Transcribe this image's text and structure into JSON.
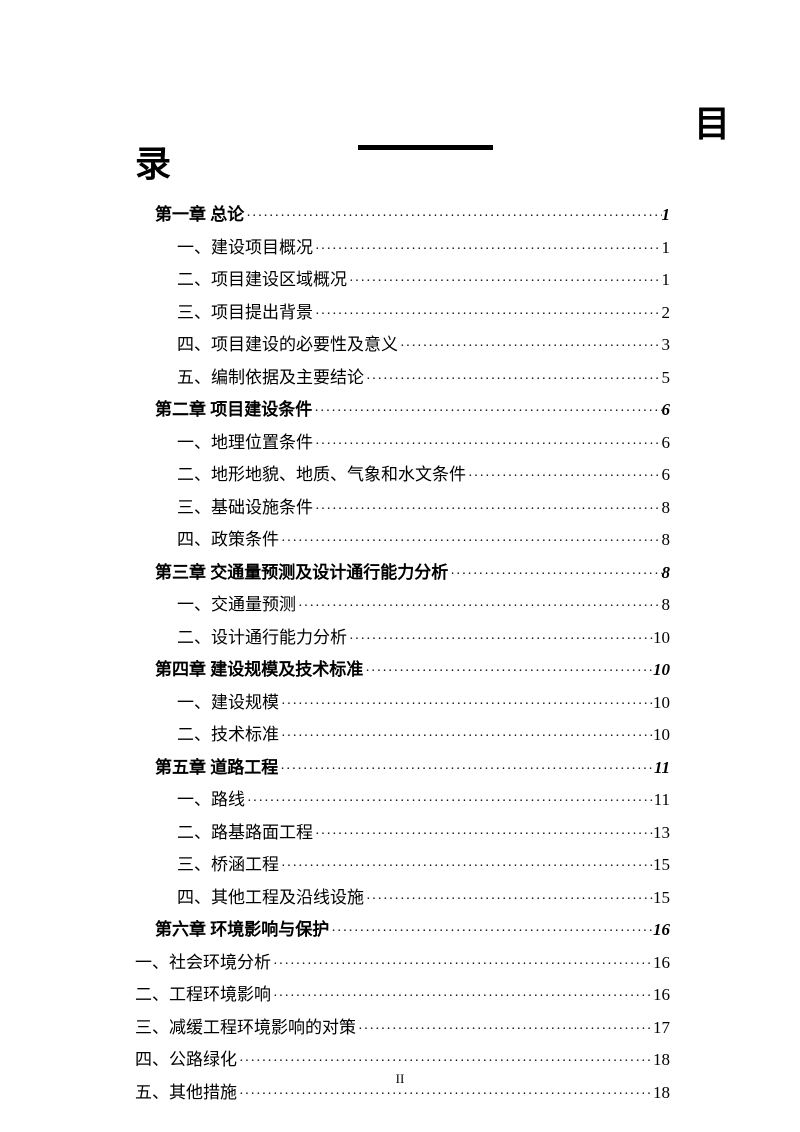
{
  "header": {
    "char_right": "目",
    "char_left": "录"
  },
  "toc": [
    {
      "type": "chapter",
      "title": "第一章 总论",
      "page": "1",
      "indent": "chapter"
    },
    {
      "type": "section",
      "title": "一、建设项目概况",
      "page": "1",
      "indent": "section"
    },
    {
      "type": "section",
      "title": "二、项目建设区域概况",
      "page": "1",
      "indent": "section"
    },
    {
      "type": "section",
      "title": "三、项目提出背景",
      "page": "2",
      "indent": "section"
    },
    {
      "type": "section",
      "title": "四、项目建设的必要性及意义",
      "page": "3",
      "indent": "section"
    },
    {
      "type": "section",
      "title": "五、编制依据及主要结论",
      "page": "5",
      "indent": "section"
    },
    {
      "type": "chapter",
      "title": "第二章 项目建设条件",
      "page": "6",
      "indent": "chapter"
    },
    {
      "type": "section",
      "title": "一、地理位置条件",
      "page": "6",
      "indent": "section"
    },
    {
      "type": "section",
      "title": "二、地形地貌、地质、气象和水文条件",
      "page": "6",
      "indent": "section"
    },
    {
      "type": "section",
      "title": "三、基础设施条件",
      "page": "8",
      "indent": "section"
    },
    {
      "type": "section",
      "title": "四、政策条件",
      "page": "8",
      "indent": "section"
    },
    {
      "type": "chapter",
      "title": "第三章 交通量预测及设计通行能力分析",
      "page": "8",
      "indent": "chapter"
    },
    {
      "type": "section",
      "title": "一、交通量预测",
      "page": "8",
      "indent": "section"
    },
    {
      "type": "section",
      "title": "二、设计通行能力分析",
      "page": "10",
      "indent": "section"
    },
    {
      "type": "chapter",
      "title": "第四章 建设规模及技术标准",
      "page": "10",
      "indent": "chapter"
    },
    {
      "type": "section",
      "title": "一、建设规模",
      "page": "10",
      "indent": "section"
    },
    {
      "type": "section",
      "title": "二、技术标准",
      "page": "10",
      "indent": "section"
    },
    {
      "type": "chapter",
      "title": "第五章 道路工程",
      "page": "11",
      "indent": "chapter"
    },
    {
      "type": "section",
      "title": "一、路线",
      "page": "11",
      "indent": "section"
    },
    {
      "type": "section",
      "title": "二、路基路面工程",
      "page": "13",
      "indent": "section"
    },
    {
      "type": "section",
      "title": "三、桥涵工程",
      "page": "15",
      "indent": "section"
    },
    {
      "type": "section",
      "title": "四、其他工程及沿线设施",
      "page": "15",
      "indent": "section"
    },
    {
      "type": "chapter",
      "title": "第六章 环境影响与保护",
      "page": "16",
      "indent": "chapter"
    },
    {
      "type": "section",
      "title": "一、社会环境分析",
      "page": "16",
      "indent": "section-alt"
    },
    {
      "type": "section",
      "title": "二、工程环境影响",
      "page": "16",
      "indent": "section-alt"
    },
    {
      "type": "section",
      "title": "三、减缓工程环境影响的对策",
      "page": "17",
      "indent": "section-alt"
    },
    {
      "type": "section",
      "title": "四、公路绿化",
      "page": "18",
      "indent": "section-alt"
    },
    {
      "type": "section",
      "title": "五、其他措施",
      "page": "18",
      "indent": "section-alt"
    }
  ],
  "page_num": "II",
  "styling": {
    "background_color": "#ffffff",
    "text_color": "#000000",
    "title_fontsize": 36,
    "body_fontsize": 17,
    "page_num_fontsize": 13
  }
}
